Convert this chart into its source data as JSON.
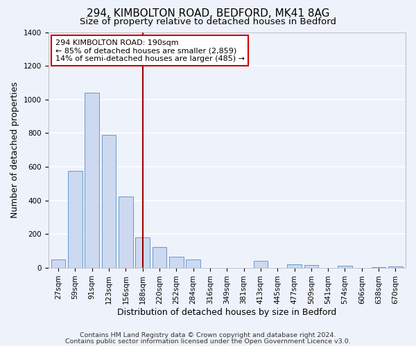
{
  "title": "294, KIMBOLTON ROAD, BEDFORD, MK41 8AG",
  "subtitle": "Size of property relative to detached houses in Bedford",
  "xlabel": "Distribution of detached houses by size in Bedford",
  "ylabel": "Number of detached properties",
  "footnote1": "Contains HM Land Registry data © Crown copyright and database right 2024.",
  "footnote2": "Contains public sector information licensed under the Open Government Licence v3.0.",
  "bar_labels": [
    "27sqm",
    "59sqm",
    "91sqm",
    "123sqm",
    "156sqm",
    "188sqm",
    "220sqm",
    "252sqm",
    "284sqm",
    "316sqm",
    "349sqm",
    "381sqm",
    "413sqm",
    "445sqm",
    "477sqm",
    "509sqm",
    "541sqm",
    "574sqm",
    "606sqm",
    "638sqm",
    "670sqm"
  ],
  "bar_values": [
    50,
    575,
    1040,
    790,
    425,
    180,
    125,
    65,
    50,
    0,
    0,
    0,
    40,
    0,
    20,
    15,
    0,
    12,
    0,
    5,
    10
  ],
  "bar_color": "#ccd9f0",
  "bar_edge_color": "#6699cc",
  "vline_index": 5,
  "vline_color": "#990000",
  "annotation_title": "294 KIMBOLTON ROAD: 190sqm",
  "annotation_line1": "← 85% of detached houses are smaller (2,859)",
  "annotation_line2": "14% of semi-detached houses are larger (485) →",
  "annotation_box_color": "#ffffff",
  "annotation_box_edge": "#cc0000",
  "ylim": [
    0,
    1400
  ],
  "yticks": [
    0,
    200,
    400,
    600,
    800,
    1000,
    1200,
    1400
  ],
  "background_color": "#eef2fa",
  "grid_color": "#ffffff",
  "title_fontsize": 11,
  "subtitle_fontsize": 9.5,
  "axis_label_fontsize": 9,
  "tick_fontsize": 7.5,
  "footnote_fontsize": 6.8
}
